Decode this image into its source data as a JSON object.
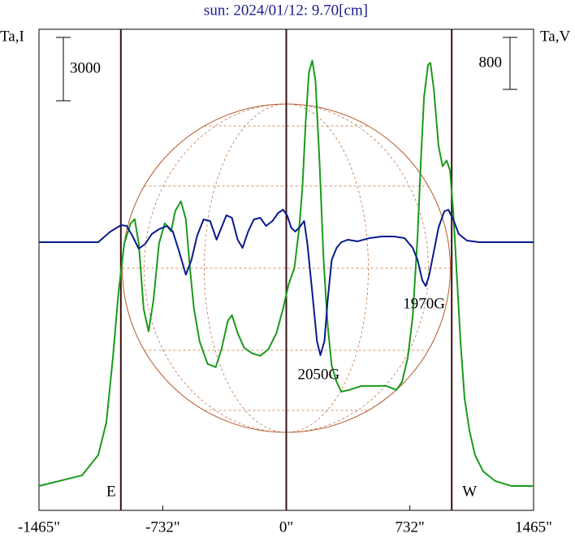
{
  "chart_data": {
    "type": "line",
    "title": "sun: 2024/01/12: 9.70[cm]",
    "ylabel": "Ta,I",
    "y2label": "Ta,V",
    "xlim": [
      -1465,
      1465
    ],
    "xticks": [
      {
        "value": -1465,
        "label": "-1465\""
      },
      {
        "value": -732,
        "label": "-732\""
      },
      {
        "value": 0,
        "label": "0\""
      },
      {
        "value": 732,
        "label": "732\""
      },
      {
        "value": 1465,
        "label": "1465\""
      }
    ],
    "ylim": [
      0,
      22770
    ],
    "y2lim": [
      -4125,
      3275
    ],
    "scale_bars": [
      {
        "value": 3000,
        "axis": "y"
      },
      {
        "value": 800,
        "axis": "y2"
      }
    ],
    "vlines": [
      -980,
      0,
      980
    ],
    "limb_labels": [
      "E",
      "W"
    ],
    "annotations": [
      {
        "text": "2050G",
        "x": 192,
        "y": -2050
      },
      {
        "text": "1970G",
        "x": 816,
        "y": -963
      }
    ],
    "series": [
      {
        "color": "#1a9a1a",
        "x": [
          -1465,
          -1210,
          -1114,
          -1066,
          -1027,
          -994,
          -960,
          -922,
          -898,
          -874,
          -845,
          -816,
          -787,
          -754,
          -720,
          -682,
          -658,
          -624,
          -595,
          -571,
          -547,
          -514,
          -466,
          -418,
          -384,
          -346,
          -322,
          -288,
          -250,
          -202,
          -154,
          -106,
          -58,
          -19,
          14,
          48,
          77,
          96,
          115,
          134,
          154,
          173,
          197,
          221,
          245,
          269,
          298,
          326,
          374,
          446,
          518,
          590,
          653,
          686,
          720,
          749,
          778,
          797,
          816,
          840,
          854,
          874,
          902,
          926,
          950,
          970,
          989,
          1008,
          1032,
          1056,
          1085,
          1118,
          1166,
          1238,
          1334,
          1465
        ],
        "values": [
          1155,
          1656,
          2618,
          4158,
          7238,
          10318,
          12628,
          13591,
          13783,
          12628,
          9548,
          8470,
          9933,
          12628,
          13591,
          13206,
          14168,
          14630,
          13783,
          11473,
          9548,
          8008,
          6930,
          6776,
          7623,
          8971,
          9240,
          8393,
          7700,
          7431,
          7315,
          7623,
          8393,
          9548,
          10703,
          11473,
          13398,
          15323,
          18403,
          20713,
          21291,
          20328,
          16478,
          11858,
          8778,
          6853,
          6083,
          5621,
          5698,
          5891,
          5891,
          5891,
          5698,
          6083,
          7238,
          9163,
          13013,
          16478,
          19558,
          21098,
          21175,
          19943,
          17248,
          16286,
          16555,
          16093,
          14168,
          11473,
          8008,
          5313,
          3773,
          2618,
          1848,
          1386,
          1155,
          1155
        ]
      },
      {
        "color": "#0a1a8c",
        "axis": "y2",
        "x": [
          -1465,
          -1114,
          -1042,
          -979,
          -946,
          -912,
          -874,
          -835,
          -797,
          -754,
          -706,
          -672,
          -634,
          -595,
          -562,
          -528,
          -490,
          -451,
          -413,
          -384,
          -355,
          -322,
          -288,
          -259,
          -226,
          -192,
          -154,
          -120,
          -82,
          -48,
          -19,
          5,
          29,
          53,
          77,
          106,
          125,
          154,
          182,
          202,
          226,
          245,
          269,
          298,
          326,
          365,
          422,
          494,
          566,
          638,
          701,
          749,
          778,
          806,
          826,
          845,
          869,
          902,
          936,
          960,
          989,
          1022,
          1070,
          1142,
          1465
        ],
        "values": [
          0,
          0,
          163,
          263,
          250,
          100,
          -100,
          -25,
          125,
          200,
          250,
          163,
          -150,
          -500,
          -275,
          100,
          350,
          325,
          38,
          225,
          413,
          375,
          38,
          -88,
          163,
          350,
          375,
          250,
          325,
          450,
          500,
          413,
          225,
          163,
          225,
          325,
          -25,
          -775,
          -1525,
          -1738,
          -1525,
          -900,
          -275,
          -88,
          0,
          38,
          13,
          63,
          88,
          88,
          63,
          -88,
          -275,
          -588,
          -675,
          -525,
          -213,
          225,
          475,
          500,
          350,
          125,
          25,
          0,
          0
        ]
      }
    ]
  }
}
